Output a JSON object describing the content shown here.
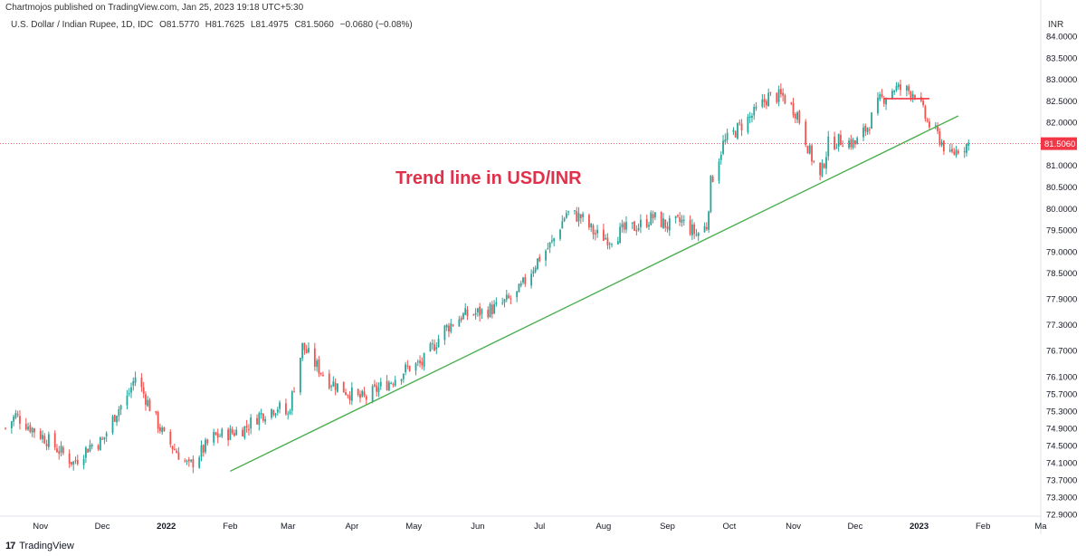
{
  "header": {
    "published": "Chartmojos published on TradingView.com, Jan 25, 2023 19:18 UTC+5:30",
    "symbol": "U.S. Dollar / Indian Rupee, 1D, IDC",
    "open": "O81.5770",
    "high": "H81.7625",
    "low": "L81.4975",
    "close": "C81.5060",
    "change": "−0.0680 (−0.08%)",
    "currency": "INR"
  },
  "footer": {
    "logo": "17",
    "brand": "TradingView"
  },
  "colors": {
    "up": "#26a69a",
    "down": "#ef5350",
    "trend": "#4caf50",
    "annotation": "#e0314b",
    "price_tag": "#f23645"
  },
  "chart_data": {
    "type": "candlestick",
    "title": "",
    "annotation": "Trend line in USD/INR",
    "last_price": "81.5060",
    "ylim": [
      72.9,
      84.0
    ],
    "y_ticks": [
      "84.0000",
      "83.5000",
      "83.0000",
      "82.5000",
      "82.0000",
      "81.5000",
      "81.0000",
      "80.5000",
      "80.0000",
      "79.5000",
      "79.0000",
      "78.5000",
      "77.9000",
      "77.3000",
      "76.7000",
      "76.1000",
      "75.7000",
      "75.3000",
      "74.9000",
      "74.5000",
      "74.1000",
      "73.7000",
      "73.3000",
      "72.9000"
    ],
    "x_ticks": [
      "Nov",
      "Dec",
      "2022",
      "Feb",
      "Mar",
      "Apr",
      "May",
      "Jun",
      "Jul",
      "Aug",
      "Sep",
      "Oct",
      "Nov",
      "Dec",
      "2023",
      "Feb",
      "Ma"
    ],
    "x_tick_dates": [
      "2021-11-01",
      "2021-12-01",
      "2022-01-01",
      "2022-02-01",
      "2022-03-01",
      "2022-04-01",
      "2022-05-01",
      "2022-06-01",
      "2022-07-01",
      "2022-08-01",
      "2022-09-01",
      "2022-10-01",
      "2022-11-01",
      "2022-12-01",
      "2023-01-01",
      "2023-02-01",
      "2023-03-01"
    ],
    "x_range": [
      "2021-10-15",
      "2023-03-01"
    ],
    "close_path": [
      [
        "2021-10-15",
        74.9
      ],
      [
        "2021-10-20",
        75.2
      ],
      [
        "2021-10-25",
        75.0
      ],
      [
        "2021-11-05",
        74.6
      ],
      [
        "2021-11-12",
        74.3
      ],
      [
        "2021-11-17",
        74.1
      ],
      [
        "2021-11-25",
        74.5
      ],
      [
        "2021-12-01",
        74.6
      ],
      [
        "2021-12-08",
        75.3
      ],
      [
        "2021-12-13",
        75.6
      ],
      [
        "2021-12-17",
        76.1
      ],
      [
        "2021-12-22",
        75.6
      ],
      [
        "2021-12-31",
        74.7
      ],
      [
        "2022-01-07",
        74.3
      ],
      [
        "2022-01-12",
        74.0
      ],
      [
        "2022-01-17",
        74.3
      ],
      [
        "2022-01-24",
        74.7
      ],
      [
        "2022-02-02",
        74.8
      ],
      [
        "2022-02-08",
        74.9
      ],
      [
        "2022-02-15",
        75.2
      ],
      [
        "2022-02-24",
        75.4
      ],
      [
        "2022-03-01",
        75.2
      ],
      [
        "2022-03-08",
        76.8
      ],
      [
        "2022-03-14",
        76.4
      ],
      [
        "2022-03-21",
        76.0
      ],
      [
        "2022-03-28",
        75.8
      ],
      [
        "2022-04-04",
        75.6
      ],
      [
        "2022-04-08",
        75.6
      ],
      [
        "2022-04-13",
        75.8
      ],
      [
        "2022-04-20",
        76.0
      ],
      [
        "2022-04-28",
        76.3
      ],
      [
        "2022-05-05",
        76.4
      ],
      [
        "2022-05-09",
        76.7
      ],
      [
        "2022-05-16",
        77.2
      ],
      [
        "2022-05-24",
        77.5
      ],
      [
        "2022-06-03",
        77.6
      ],
      [
        "2022-06-10",
        77.7
      ],
      [
        "2022-06-20",
        78.0
      ],
      [
        "2022-06-30",
        78.8
      ],
      [
        "2022-07-07",
        79.2
      ],
      [
        "2022-07-14",
        79.9
      ],
      [
        "2022-07-21",
        79.8
      ],
      [
        "2022-07-28",
        79.4
      ],
      [
        "2022-08-04",
        79.3
      ],
      [
        "2022-08-11",
        79.5
      ],
      [
        "2022-08-18",
        79.6
      ],
      [
        "2022-08-25",
        79.8
      ],
      [
        "2022-09-01",
        79.6
      ],
      [
        "2022-09-08",
        79.7
      ],
      [
        "2022-09-15",
        79.4
      ],
      [
        "2022-09-20",
        79.6
      ],
      [
        "2022-09-22",
        80.6
      ],
      [
        "2022-09-28",
        81.5
      ],
      [
        "2022-10-06",
        81.9
      ],
      [
        "2022-10-13",
        82.2
      ],
      [
        "2022-10-20",
        82.6
      ],
      [
        "2022-10-27",
        82.6
      ],
      [
        "2022-11-03",
        82.2
      ],
      [
        "2022-11-09",
        81.3
      ],
      [
        "2022-11-14",
        80.7
      ],
      [
        "2022-11-18",
        81.5
      ],
      [
        "2022-11-25",
        81.6
      ],
      [
        "2022-12-01",
        81.5
      ],
      [
        "2022-12-07",
        81.9
      ],
      [
        "2022-12-13",
        82.5
      ],
      [
        "2022-12-20",
        82.8
      ],
      [
        "2022-12-30",
        82.7
      ],
      [
        "2023-01-05",
        82.0
      ],
      [
        "2023-01-10",
        81.7
      ],
      [
        "2023-01-16",
        81.2
      ],
      [
        "2023-01-20",
        81.4
      ],
      [
        "2023-01-25",
        81.5
      ]
    ],
    "trend_line": [
      [
        "2022-02-01",
        73.9
      ],
      [
        "2023-01-20",
        82.15
      ]
    ],
    "resistance_line": [
      [
        "2022-12-15",
        82.55
      ],
      [
        "2023-01-06",
        82.55
      ]
    ],
    "grid": false,
    "legend": "top-left"
  }
}
